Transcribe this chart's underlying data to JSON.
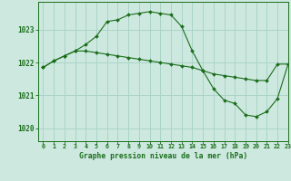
{
  "title": "Graphe pression niveau de la mer (hPa)",
  "background_color": "#cde8df",
  "grid_color": "#aad4c8",
  "line_color": "#1a6e1a",
  "xlim": [
    -0.5,
    23
  ],
  "ylim": [
    1019.6,
    1023.85
  ],
  "yticks": [
    1020,
    1021,
    1022,
    1023
  ],
  "xticks": [
    0,
    1,
    2,
    3,
    4,
    5,
    6,
    7,
    8,
    9,
    10,
    11,
    12,
    13,
    14,
    15,
    16,
    17,
    18,
    19,
    20,
    21,
    22,
    23
  ],
  "series1_x": [
    0,
    1,
    2,
    3,
    4,
    5,
    6,
    7,
    8,
    9,
    10,
    11,
    12,
    13,
    14,
    15,
    16,
    17,
    18,
    19,
    20,
    21,
    22,
    23
  ],
  "series1_y": [
    1021.85,
    1022.05,
    1022.2,
    1022.35,
    1022.35,
    1022.3,
    1022.25,
    1022.2,
    1022.15,
    1022.1,
    1022.05,
    1022.0,
    1021.95,
    1021.9,
    1021.85,
    1021.75,
    1021.65,
    1021.6,
    1021.55,
    1021.5,
    1021.45,
    1021.45,
    1021.95,
    1021.95
  ],
  "series2_x": [
    0,
    1,
    2,
    3,
    4,
    5,
    6,
    7,
    8,
    9,
    10,
    11,
    12,
    13,
    14,
    15,
    16,
    17,
    18,
    19,
    20,
    21,
    22,
    23
  ],
  "series2_y": [
    1021.85,
    1022.05,
    1022.2,
    1022.35,
    1022.55,
    1022.8,
    1023.25,
    1023.3,
    1023.45,
    1023.5,
    1023.55,
    1023.5,
    1023.45,
    1023.1,
    1022.35,
    1021.75,
    1021.2,
    1020.85,
    1020.75,
    1020.4,
    1020.35,
    1020.5,
    1020.9,
    1021.95
  ]
}
